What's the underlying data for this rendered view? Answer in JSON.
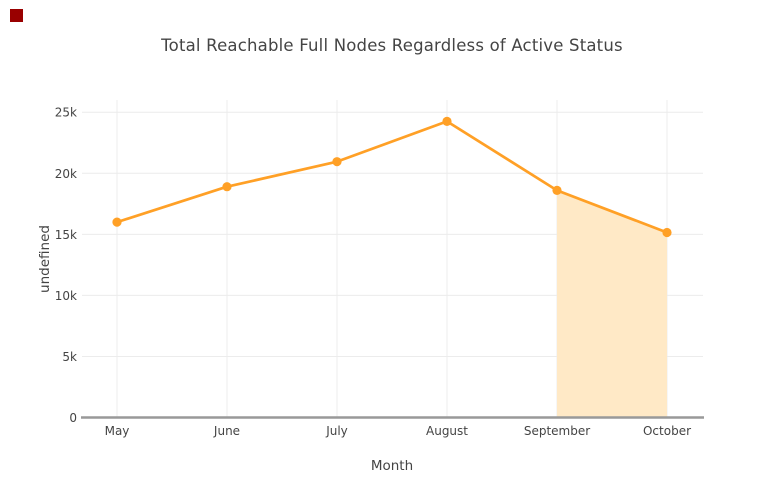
{
  "window": {
    "background": "#ffffff"
  },
  "corner_marker": {
    "color": "#990000"
  },
  "chart_data": {
    "type": "line",
    "title": "Total Reachable Full Nodes Regardless of Active Status",
    "xlabel": "Month",
    "ylabel": "undefined",
    "categories": [
      "May",
      "June",
      "July",
      "August",
      "September",
      "October"
    ],
    "series": [
      {
        "name": "",
        "values": [
          16000,
          18900,
          20950,
          24250,
          18600,
          15150
        ],
        "color": "#ffa026",
        "marker": "circle",
        "line_width": 2.7,
        "marker_radius": 4.6
      }
    ],
    "ylim": [
      0,
      26000
    ],
    "yticks": [
      0,
      5000,
      10000,
      15000,
      20000,
      25000
    ],
    "ytick_labels": [
      "0",
      "5k",
      "10k",
      "15k",
      "20k",
      "25k"
    ],
    "grid": true,
    "legend": "none",
    "highlight_region": {
      "from_category": "September",
      "to_category": "October",
      "fill_color": "#ffe9c6",
      "fills_down_to": 0
    }
  },
  "style": {
    "text_color": "#444444",
    "grid_color": "#ececec",
    "axis_line_color": "#999999",
    "background": "#ffffff"
  }
}
